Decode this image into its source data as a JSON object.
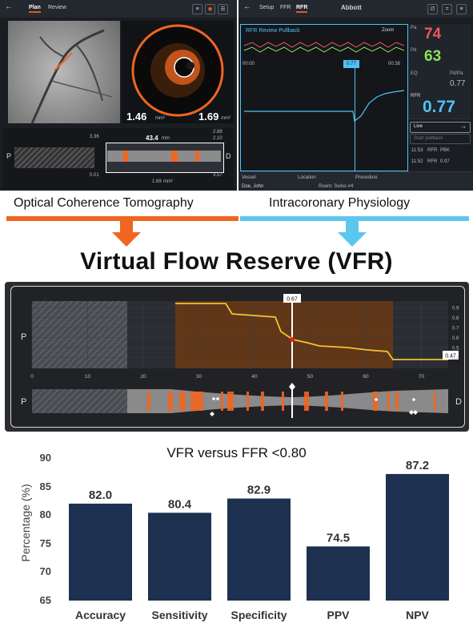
{
  "oct_screen": {
    "tabs": [
      "Plan",
      "Review"
    ],
    "area_values": [
      "1.46",
      "1.69"
    ],
    "area_unit": "mm²",
    "length_value": "43.4",
    "length_unit": "mm",
    "left_stats": [
      "3.36",
      "0.01"
    ],
    "right_stats": [
      "2.88",
      "2.10",
      "3.57"
    ],
    "mid_stat": "1.69",
    "mid_stat_unit": "mm²",
    "prox_label": "P",
    "dist_label": "D"
  },
  "ifr_screen": {
    "tabs": [
      "Setup",
      "FFR",
      "RFR"
    ],
    "brand": "Abbott",
    "chart_title": "RFR Review Pullback",
    "zoom_label": "Zoom",
    "time_start": "00:00",
    "time_end": "00:38",
    "cursor_value": "0.77",
    "pa_label": "Pa",
    "pa_value": "74",
    "pd_label": "Pd",
    "pd_value": "63",
    "eq_label": "EQ",
    "pdpa_label": "Pd/Pa",
    "pdpa_value": "0.77",
    "rfr_label": "RFR",
    "rfr_value": "0.77",
    "live_label": "Live",
    "start_pullback_label": "Start pullback",
    "history": [
      {
        "time": "11:53",
        "type": "RFR",
        "value": "PBK"
      },
      {
        "time": "11:52",
        "type": "RFR",
        "value": "0.97"
      }
    ],
    "footer_items": [
      "Vessel",
      "Location",
      "Procedure"
    ],
    "patient": "Doe, John",
    "room": "Room: Swiss #4"
  },
  "modalities": {
    "left": "Optical Coherence Tomography",
    "right": "Intracoronary Physiology"
  },
  "main_title": "Virtual Flow Reserve (VFR)",
  "vfr_panel": {
    "p_label": "P",
    "d_label": "D",
    "cursor_value": "0.67",
    "end_value": "0.47",
    "x_ticks": [
      "0",
      "10",
      "20",
      "30",
      "40",
      "50",
      "60",
      "70"
    ],
    "y_ticks": [
      "0.9",
      "0.8",
      "0.7",
      "0.6",
      "0.5",
      "0.4"
    ]
  },
  "colors": {
    "bar_fill": "#1d3050",
    "oct_orange": "#f06520",
    "physio_blue": "#5bc7ee",
    "rfr_blue": "#4fc3f7",
    "pa_red": "#f0555c",
    "pd_green": "#8ee05a"
  },
  "chart_data": {
    "type": "bar",
    "title": "VFR versus FFR <0.80",
    "categories": [
      "Accuracy",
      "Sensitivity",
      "Specificity",
      "PPV",
      "NPV"
    ],
    "values": [
      82.0,
      80.4,
      82.9,
      74.5,
      87.2
    ],
    "value_labels": [
      "82.0",
      "80.4",
      "82.9",
      "74.5",
      "87.2"
    ],
    "xlabel": "",
    "ylabel": "Percentage (%)",
    "ylim": [
      65,
      90
    ],
    "yticks": [
      "65",
      "70",
      "75",
      "80",
      "85",
      "90"
    ],
    "grid": false
  }
}
